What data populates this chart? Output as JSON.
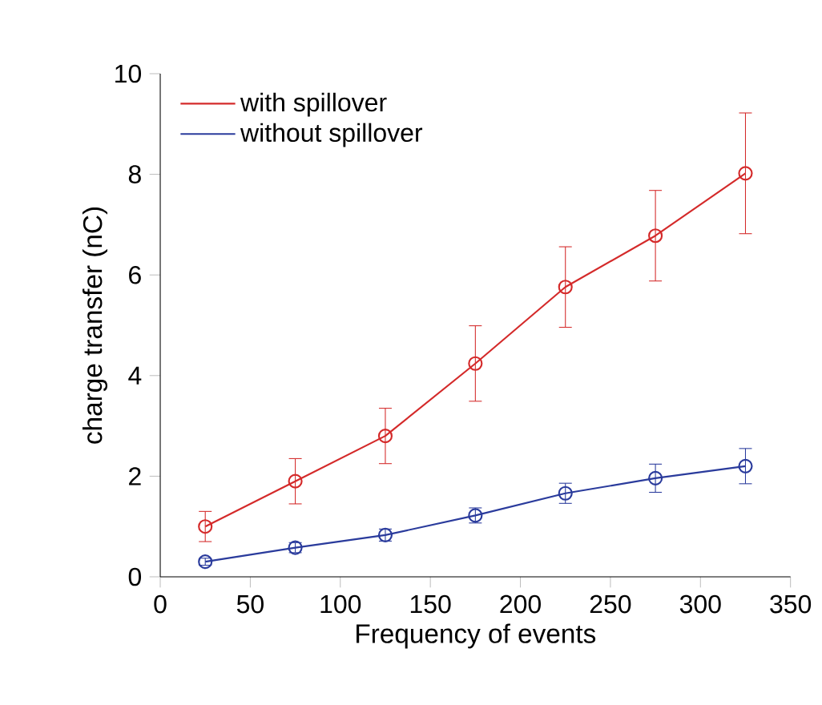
{
  "chart_data": {
    "type": "line",
    "xlabel": "Frequency of events",
    "ylabel": "charge transfer (nC)",
    "x": [
      25,
      75,
      125,
      175,
      225,
      275,
      325
    ],
    "series": [
      {
        "name": "with spillover",
        "color": "#d42a2a",
        "values": [
          1.0,
          1.9,
          2.8,
          4.24,
          5.76,
          6.78,
          8.02
        ],
        "errors": [
          0.3,
          0.45,
          0.55,
          0.75,
          0.8,
          0.9,
          1.2
        ]
      },
      {
        "name": "without spillover",
        "color": "#2a3b9c",
        "values": [
          0.3,
          0.58,
          0.83,
          1.22,
          1.66,
          1.96,
          2.2
        ],
        "errors": [
          0.07,
          0.1,
          0.12,
          0.15,
          0.2,
          0.28,
          0.35
        ]
      }
    ],
    "xlim": [
      0,
      350
    ],
    "ylim": [
      0,
      10
    ],
    "xticks": [
      0,
      50,
      100,
      150,
      200,
      250,
      300,
      350
    ],
    "yticks": [
      0,
      2,
      4,
      6,
      8,
      10
    ],
    "legend": "top left",
    "marker": "circle",
    "line_style": "solid",
    "grid": false
  }
}
